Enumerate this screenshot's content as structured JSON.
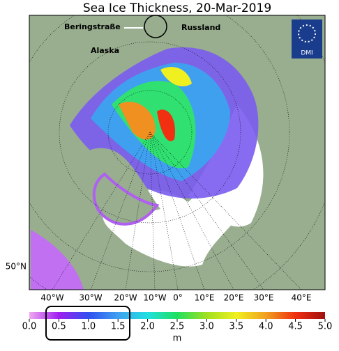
{
  "chart_data": {
    "type": "map",
    "title": "Sea Ice Thickness, 20-Mar-2019",
    "annotations": {
      "bering": "Beringstraße",
      "russia": "Russland",
      "alaska": "Alaska",
      "logo": "DMI"
    },
    "lat_label": "50°N",
    "lon_labels": [
      "40°W",
      "30°W",
      "20°W",
      "10°W",
      "0°",
      "10°E",
      "20°E",
      "30°E",
      "40°E"
    ],
    "colorbar": {
      "label": "m",
      "clim": [
        0,
        5
      ],
      "ticks": [
        {
          "value": 0,
          "label": "0.0"
        },
        0.5,
        {
          "value": 1,
          "label": "1.0"
        },
        1.5,
        {
          "value": 2,
          "label": "2.0"
        },
        2.5,
        {
          "value": 3,
          "label": "3.0"
        },
        3.5,
        {
          "value": 4,
          "label": "4.0"
        },
        4.5,
        {
          "value": 5,
          "label": "5.0"
        }
      ],
      "colors": [
        "#f0a8f0",
        "#a020f0",
        "#3050f0",
        "#40a0f0",
        "#20e0e0",
        "#20e060",
        "#a0e020",
        "#f0f020",
        "#f0a020",
        "#f03010",
        "#a01010"
      ]
    }
  }
}
